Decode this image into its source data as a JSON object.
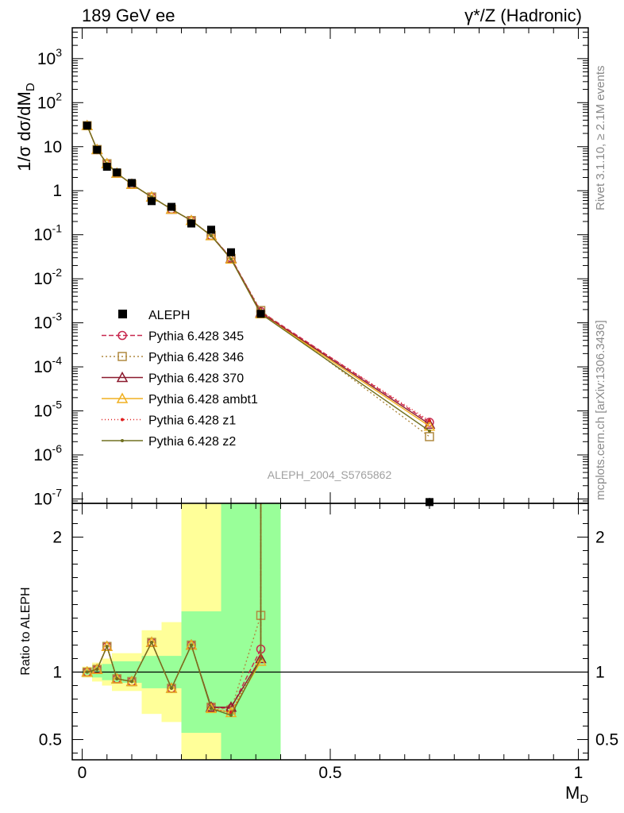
{
  "header": {
    "left": "189 GeV ee",
    "right": "γ*/Z (Hadronic)"
  },
  "side_text": {
    "rivet": "Rivet 3.1.10, ≥ 2.1M events",
    "mcplots": "mcplots.cern.ch [arXiv:1306.3436]"
  },
  "watermark": "ALEPH_2004_S5765862",
  "chart_data": [
    {
      "type": "scatter",
      "scale": "log",
      "ylabel": "1/σ  dσ/dM_D",
      "xlim": [
        -0.02,
        1.02
      ],
      "ylim_exp": [
        -7.1,
        3.7
      ],
      "y_tick_labels": [
        {
          "exp": 3,
          "text": "10^3"
        },
        {
          "exp": 2,
          "text": "10^2"
        },
        {
          "exp": 1,
          "text": "10"
        },
        {
          "exp": 0,
          "text": "1"
        },
        {
          "exp": -1,
          "text": "10^-1"
        },
        {
          "exp": -2,
          "text": "10^-2"
        },
        {
          "exp": -3,
          "text": "10^-3"
        },
        {
          "exp": -4,
          "text": "10^-4"
        },
        {
          "exp": -5,
          "text": "10^-5"
        },
        {
          "exp": -6,
          "text": "10^-6"
        },
        {
          "exp": -7,
          "text": "10^-7"
        }
      ],
      "x": [
        0.01,
        0.03,
        0.05,
        0.07,
        0.1,
        0.14,
        0.18,
        0.22,
        0.26,
        0.3,
        0.36,
        0.7
      ],
      "data_series": {
        "name": "ALEPH",
        "values": [
          30,
          8.5,
          3.5,
          2.6,
          1.5,
          0.58,
          0.43,
          0.18,
          0.13,
          0.04,
          0.0016,
          8.5e-08
        ]
      },
      "mc_series": [
        {
          "name": "Pythia 6.428 345",
          "color": "#c8284f",
          "dash": "6,3",
          "marker": "circle",
          "values": [
            30,
            8.6,
            4.1,
            2.5,
            1.4,
            0.72,
            0.38,
            0.21,
            0.096,
            0.03,
            0.0018,
            5.5e-06
          ]
        },
        {
          "name": "Pythia 6.428 346",
          "color": "#b08a40",
          "dash": "2,3",
          "marker": "square",
          "values": [
            30,
            8.6,
            4.1,
            2.5,
            1.4,
            0.72,
            0.38,
            0.21,
            0.097,
            0.029,
            0.0019,
            2.6e-06
          ]
        },
        {
          "name": "Pythia 6.428 370",
          "color": "#8b1a2e",
          "dash": "",
          "marker": "triangle",
          "values": [
            30,
            8.6,
            4.1,
            2.5,
            1.4,
            0.72,
            0.38,
            0.21,
            0.096,
            0.029,
            0.0017,
            5e-06
          ]
        },
        {
          "name": "Pythia 6.428 ambt1",
          "color": "#f0b020",
          "dash": "",
          "marker": "triangle",
          "values": [
            30,
            8.6,
            4.1,
            2.5,
            1.4,
            0.72,
            0.38,
            0.21,
            0.095,
            0.028,
            0.0016,
            4.5e-06
          ]
        },
        {
          "name": "Pythia 6.428 z1",
          "color": "#e02020",
          "dash": "1,3",
          "marker": "dot",
          "values": [
            30,
            8.6,
            4.1,
            2.5,
            1.4,
            0.72,
            0.38,
            0.21,
            0.095,
            0.028,
            0.0017,
            6e-06
          ]
        },
        {
          "name": "Pythia 6.428 z2",
          "color": "#707020",
          "dash": "",
          "marker": "dot",
          "values": [
            30,
            8.6,
            4.1,
            2.5,
            1.4,
            0.72,
            0.38,
            0.21,
            0.095,
            0.028,
            0.0016,
            3.5e-06
          ]
        }
      ]
    },
    {
      "type": "line",
      "ylabel": "Ratio to ALEPH",
      "xlabel": "M_D",
      "xlim": [
        -0.02,
        1.02
      ],
      "ylim": [
        0.35,
        2.25
      ],
      "y_ticks": [
        0.5,
        1,
        2
      ],
      "x_ticks": [
        0,
        0.5,
        1
      ],
      "x_tick_labels": [
        "0",
        "0.5",
        "1"
      ],
      "y_tick_labels": [
        "0.5",
        "1",
        "2"
      ],
      "reference": 1,
      "bands": [
        {
          "x0": 0.0,
          "x1": 0.02,
          "inner": [
            0.98,
            1.02
          ],
          "outer": [
            0.96,
            1.04
          ]
        },
        {
          "x0": 0.02,
          "x1": 0.04,
          "inner": [
            0.96,
            1.04
          ],
          "outer": [
            0.93,
            1.07
          ]
        },
        {
          "x0": 0.04,
          "x1": 0.06,
          "inner": [
            0.94,
            1.06
          ],
          "outer": [
            0.9,
            1.1
          ]
        },
        {
          "x0": 0.06,
          "x1": 0.08,
          "inner": [
            0.92,
            1.08
          ],
          "outer": [
            0.86,
            1.14
          ]
        },
        {
          "x0": 0.08,
          "x1": 0.12,
          "inner": [
            0.92,
            1.08
          ],
          "outer": [
            0.86,
            1.14
          ]
        },
        {
          "x0": 0.12,
          "x1": 0.16,
          "inner": [
            0.88,
            1.12
          ],
          "outer": [
            0.69,
            1.31
          ]
        },
        {
          "x0": 0.16,
          "x1": 0.2,
          "inner": [
            0.88,
            1.12
          ],
          "outer": [
            0.63,
            1.37
          ]
        },
        {
          "x0": 0.2,
          "x1": 0.24,
          "inner": [
            0.55,
            1.45
          ],
          "outer": [
            0.35,
            2.25
          ]
        },
        {
          "x0": 0.24,
          "x1": 0.28,
          "inner": [
            0.55,
            1.45
          ],
          "outer": [
            0.35,
            2.25
          ]
        },
        {
          "x0": 0.28,
          "x1": 0.32,
          "inner": [
            0.35,
            2.25
          ],
          "outer": [
            0.35,
            2.25
          ]
        },
        {
          "x0": 0.32,
          "x1": 0.4,
          "inner": [
            0.35,
            2.25
          ],
          "outer": [
            0.35,
            2.25
          ]
        }
      ],
      "x": [
        0.01,
        0.03,
        0.05,
        0.07,
        0.1,
        0.14,
        0.18,
        0.22,
        0.26,
        0.3,
        0.36
      ],
      "series": [
        {
          "name": "Pythia 6.428 345",
          "color": "#c8284f",
          "dash": "6,3",
          "marker": "circle",
          "values": [
            1.0,
            1.02,
            1.19,
            0.95,
            0.93,
            1.22,
            0.88,
            1.2,
            0.74,
            0.73,
            1.17
          ]
        },
        {
          "name": "Pythia 6.428 346",
          "color": "#b08a40",
          "dash": "2,3",
          "marker": "square",
          "values": [
            1.0,
            1.02,
            1.19,
            0.95,
            0.93,
            1.22,
            0.88,
            1.2,
            0.74,
            0.72,
            1.42
          ]
        },
        {
          "name": "Pythia 6.428 370",
          "color": "#8b1a2e",
          "dash": "",
          "marker": "triangle",
          "values": [
            1.0,
            1.02,
            1.19,
            0.95,
            0.93,
            1.22,
            0.88,
            1.2,
            0.74,
            0.74,
            1.1
          ]
        },
        {
          "name": "Pythia 6.428 ambt1",
          "color": "#f0b020",
          "dash": "",
          "marker": "triangle",
          "values": [
            1.0,
            1.02,
            1.19,
            0.95,
            0.93,
            1.22,
            0.88,
            1.2,
            0.73,
            0.7,
            1.08
          ]
        },
        {
          "name": "Pythia 6.428 z1",
          "color": "#e02020",
          "dash": "1,3",
          "marker": "dot",
          "values": [
            1.0,
            1.02,
            1.19,
            0.95,
            0.93,
            1.22,
            0.88,
            1.2,
            0.73,
            0.7,
            1.12
          ]
        },
        {
          "name": "Pythia 6.428 z2",
          "color": "#707020",
          "dash": "",
          "marker": "dot",
          "values": [
            1.0,
            1.02,
            1.19,
            0.95,
            0.93,
            1.22,
            0.88,
            1.2,
            0.73,
            0.68,
            1.1
          ]
        }
      ]
    }
  ],
  "colors": {
    "band_inner": "#99ff99",
    "band_outer": "#ffff99",
    "data": "#000000"
  }
}
